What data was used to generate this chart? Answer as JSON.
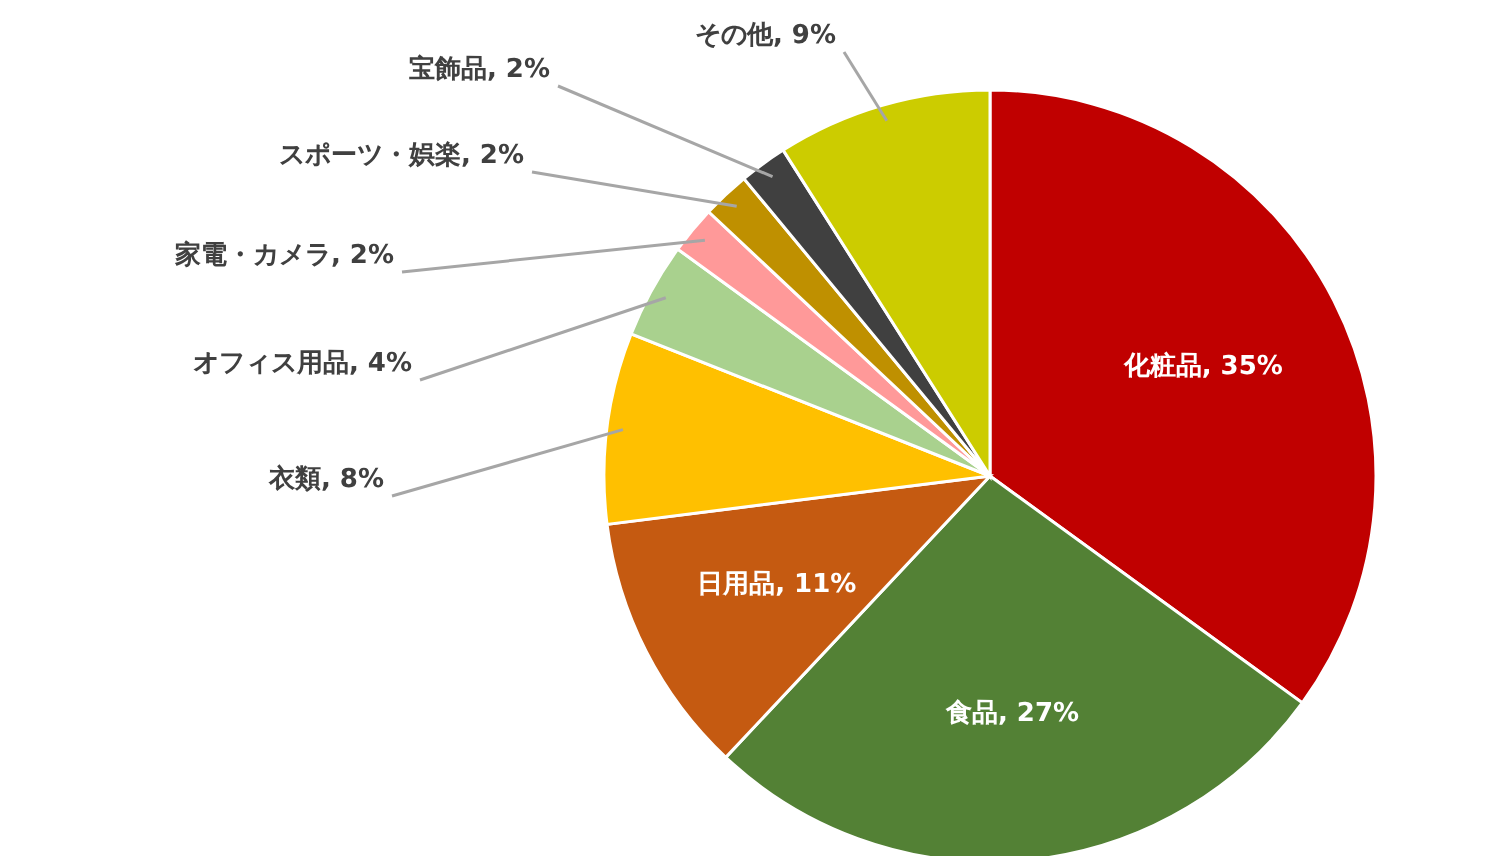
{
  "chart_data": {
    "type": "pie",
    "categories": [
      "化粧品",
      "食品",
      "日用品",
      "衣類",
      "オフィス用品",
      "家電・カメラ",
      "スポーツ・娯楽",
      "宝飾品",
      "その他"
    ],
    "values": [
      35,
      27,
      11,
      8,
      4,
      2,
      2,
      2,
      9
    ],
    "value_labels": [
      "35%",
      "27%",
      "11%",
      "8%",
      "4%",
      "2%",
      "2%",
      "2%",
      "9%"
    ],
    "colors": [
      "#c00000",
      "#538135",
      "#c55a11",
      "#ffc000",
      "#a9d18e",
      "#ff9999",
      "#bf9000",
      "#404040",
      "#cccc00"
    ],
    "legend": false
  }
}
